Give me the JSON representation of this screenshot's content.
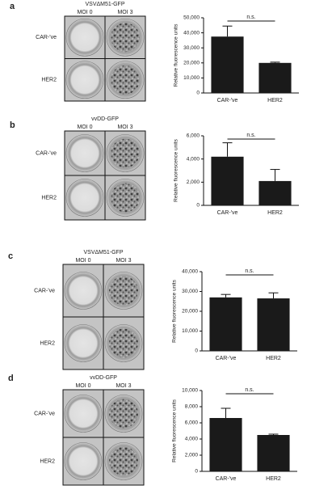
{
  "panels": [
    {
      "letter": "a",
      "virus": "VSVΔM51-GFP",
      "columns": [
        "MOI 0",
        "MOI 3"
      ],
      "rows": [
        "CAR-'ve",
        "HER2"
      ]
    },
    {
      "letter": "b",
      "virus": "vvDD-GFP",
      "columns": [
        "MOI 0",
        "MOI 3"
      ],
      "rows": [
        "CAR-'ve",
        "HER2"
      ]
    },
    {
      "letter": "c",
      "virus": "VSVΔM51-GFP",
      "columns": [
        "MOI 0",
        "MOI 3"
      ],
      "rows": [
        "CAR-'ve",
        "HER2"
      ]
    },
    {
      "letter": "d",
      "virus": "vvDD-GFP",
      "columns": [
        "MOI 0",
        "MOI 3"
      ],
      "rows": [
        "CAR-'ve",
        "HER2"
      ]
    }
  ],
  "chart_data": [
    {
      "type": "bar",
      "y_label": "Relative fluorescence units",
      "categories": [
        "CAR-'ve",
        "HER2"
      ],
      "values": [
        37500,
        20000
      ],
      "errors": [
        7000,
        500
      ],
      "color": "#1a1a1a",
      "annotation": "n.s.",
      "ylim": [
        0,
        50000
      ],
      "yticks": [
        0,
        {
          "value": 10000,
          "label": "10,000"
        },
        {
          "value": 20000,
          "label": "20,000"
        },
        {
          "value": 30000,
          "label": "30,000"
        },
        {
          "value": 40000,
          "label": "40,000"
        },
        {
          "value": 50000,
          "label": "50,000"
        }
      ]
    },
    {
      "type": "bar",
      "y_label": "Relative fluorescence units",
      "categories": [
        "CAR-'ve",
        "HER2"
      ],
      "values": [
        4200,
        2100
      ],
      "errors": [
        1200,
        1000
      ],
      "color": "#1a1a1a",
      "annotation": "n.s.",
      "ylim": [
        0,
        6000
      ],
      "yticks": [
        0,
        {
          "value": 2000,
          "label": "2,000"
        },
        {
          "value": 4000,
          "label": "4,000"
        },
        {
          "value": 6000,
          "label": "6,000"
        }
      ]
    },
    {
      "type": "bar",
      "y_label": "Relative fluorescence units",
      "categories": [
        "CAR-'ve",
        "HER2"
      ],
      "values": [
        27000,
        26500
      ],
      "errors": [
        1500,
        2800
      ],
      "color": "#1a1a1a",
      "annotation": "n.s.",
      "ylim": [
        0,
        40000
      ],
      "yticks": [
        0,
        {
          "value": 10000,
          "label": "10,000"
        },
        {
          "value": 20000,
          "label": "20,000"
        },
        {
          "value": 30000,
          "label": "30,000"
        },
        {
          "value": 40000,
          "label": "40,000"
        }
      ]
    },
    {
      "type": "bar",
      "y_label": "Relative fluorescence units",
      "categories": [
        "CAR-'ve",
        "HER2"
      ],
      "values": [
        6600,
        4500
      ],
      "errors": [
        1200,
        100
      ],
      "color": "#1a1a1a",
      "annotation": "n.s.",
      "ylim": [
        0,
        10000
      ],
      "yticks": [
        0,
        {
          "value": 2000,
          "label": "2,000"
        },
        {
          "value": 4000,
          "label": "4,000"
        },
        {
          "value": 6000,
          "label": "6,000"
        },
        {
          "value": 8000,
          "label": "8,000"
        },
        {
          "value": 10000,
          "label": "10,000"
        }
      ]
    }
  ]
}
